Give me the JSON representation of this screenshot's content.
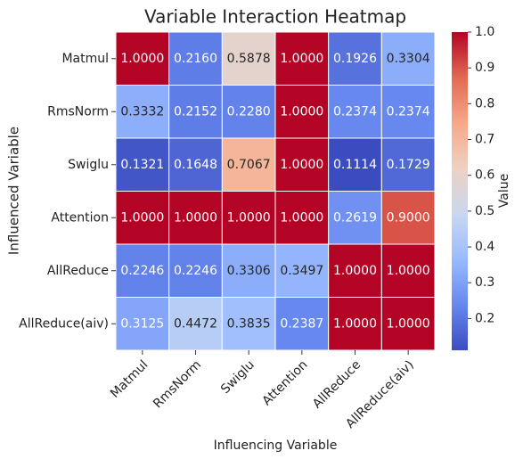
{
  "chart_data": {
    "type": "heatmap",
    "title": "Variable Interaction Heatmap",
    "x_label": "Influencing Variable",
    "y_label": "Influenced Variable",
    "colorbar_label": "Value",
    "columns": [
      "Matmul",
      "RmsNorm",
      "Swiglu",
      "Attention",
      "AllReduce",
      "AllReduce(aiv)"
    ],
    "rows": [
      "Matmul",
      "RmsNorm",
      "Swiglu",
      "Attention",
      "AllReduce",
      "AllReduce(aiv)"
    ],
    "values": [
      [
        1,
        0.216,
        0.5878,
        1,
        0.1926,
        0.3304
      ],
      [
        0.3332,
        0.2152,
        0.228,
        1,
        0.2374,
        0.2374
      ],
      [
        0.1321,
        0.1648,
        0.7067,
        1,
        0.1114,
        0.1729
      ],
      [
        1,
        1,
        1,
        1,
        0.2619,
        0.9
      ],
      [
        0.2246,
        0.2246,
        0.3306,
        0.3497,
        1,
        1
      ],
      [
        0.3125,
        0.4472,
        0.3835,
        0.2387,
        1,
        1
      ]
    ],
    "value_labels": [
      [
        "1.0000",
        "0.2160",
        "0.5878",
        "1.0000",
        "0.1926",
        "0.3304"
      ],
      [
        "0.3332",
        "0.2152",
        "0.2280",
        "1.0000",
        "0.2374",
        "0.2374"
      ],
      [
        "0.1321",
        "0.1648",
        "0.7067",
        "1.0000",
        "0.1114",
        "0.1729"
      ],
      [
        "1.0000",
        "1.0000",
        "1.0000",
        "1.0000",
        "0.2619",
        "0.9000"
      ],
      [
        "0.2246",
        "0.2246",
        "0.3306",
        "0.3497",
        "1.0000",
        "1.0000"
      ],
      [
        "0.3125",
        "0.4472",
        "0.3835",
        "0.2387",
        "1.0000",
        "1.0000"
      ]
    ],
    "clim": [
      0.1114,
      1
    ],
    "cticks": [
      0.2,
      0.3,
      0.4,
      0.5,
      0.6,
      0.7,
      0.8,
      0.9,
      {
        "value": 1,
        "label": "1.0"
      }
    ],
    "colormap": [
      "#3b4cc0",
      "#6788ee",
      "#9abbff",
      "#c9d7f0",
      "#edd1c2",
      "#f7a889",
      "#e26952",
      "#b40426"
    ]
  }
}
